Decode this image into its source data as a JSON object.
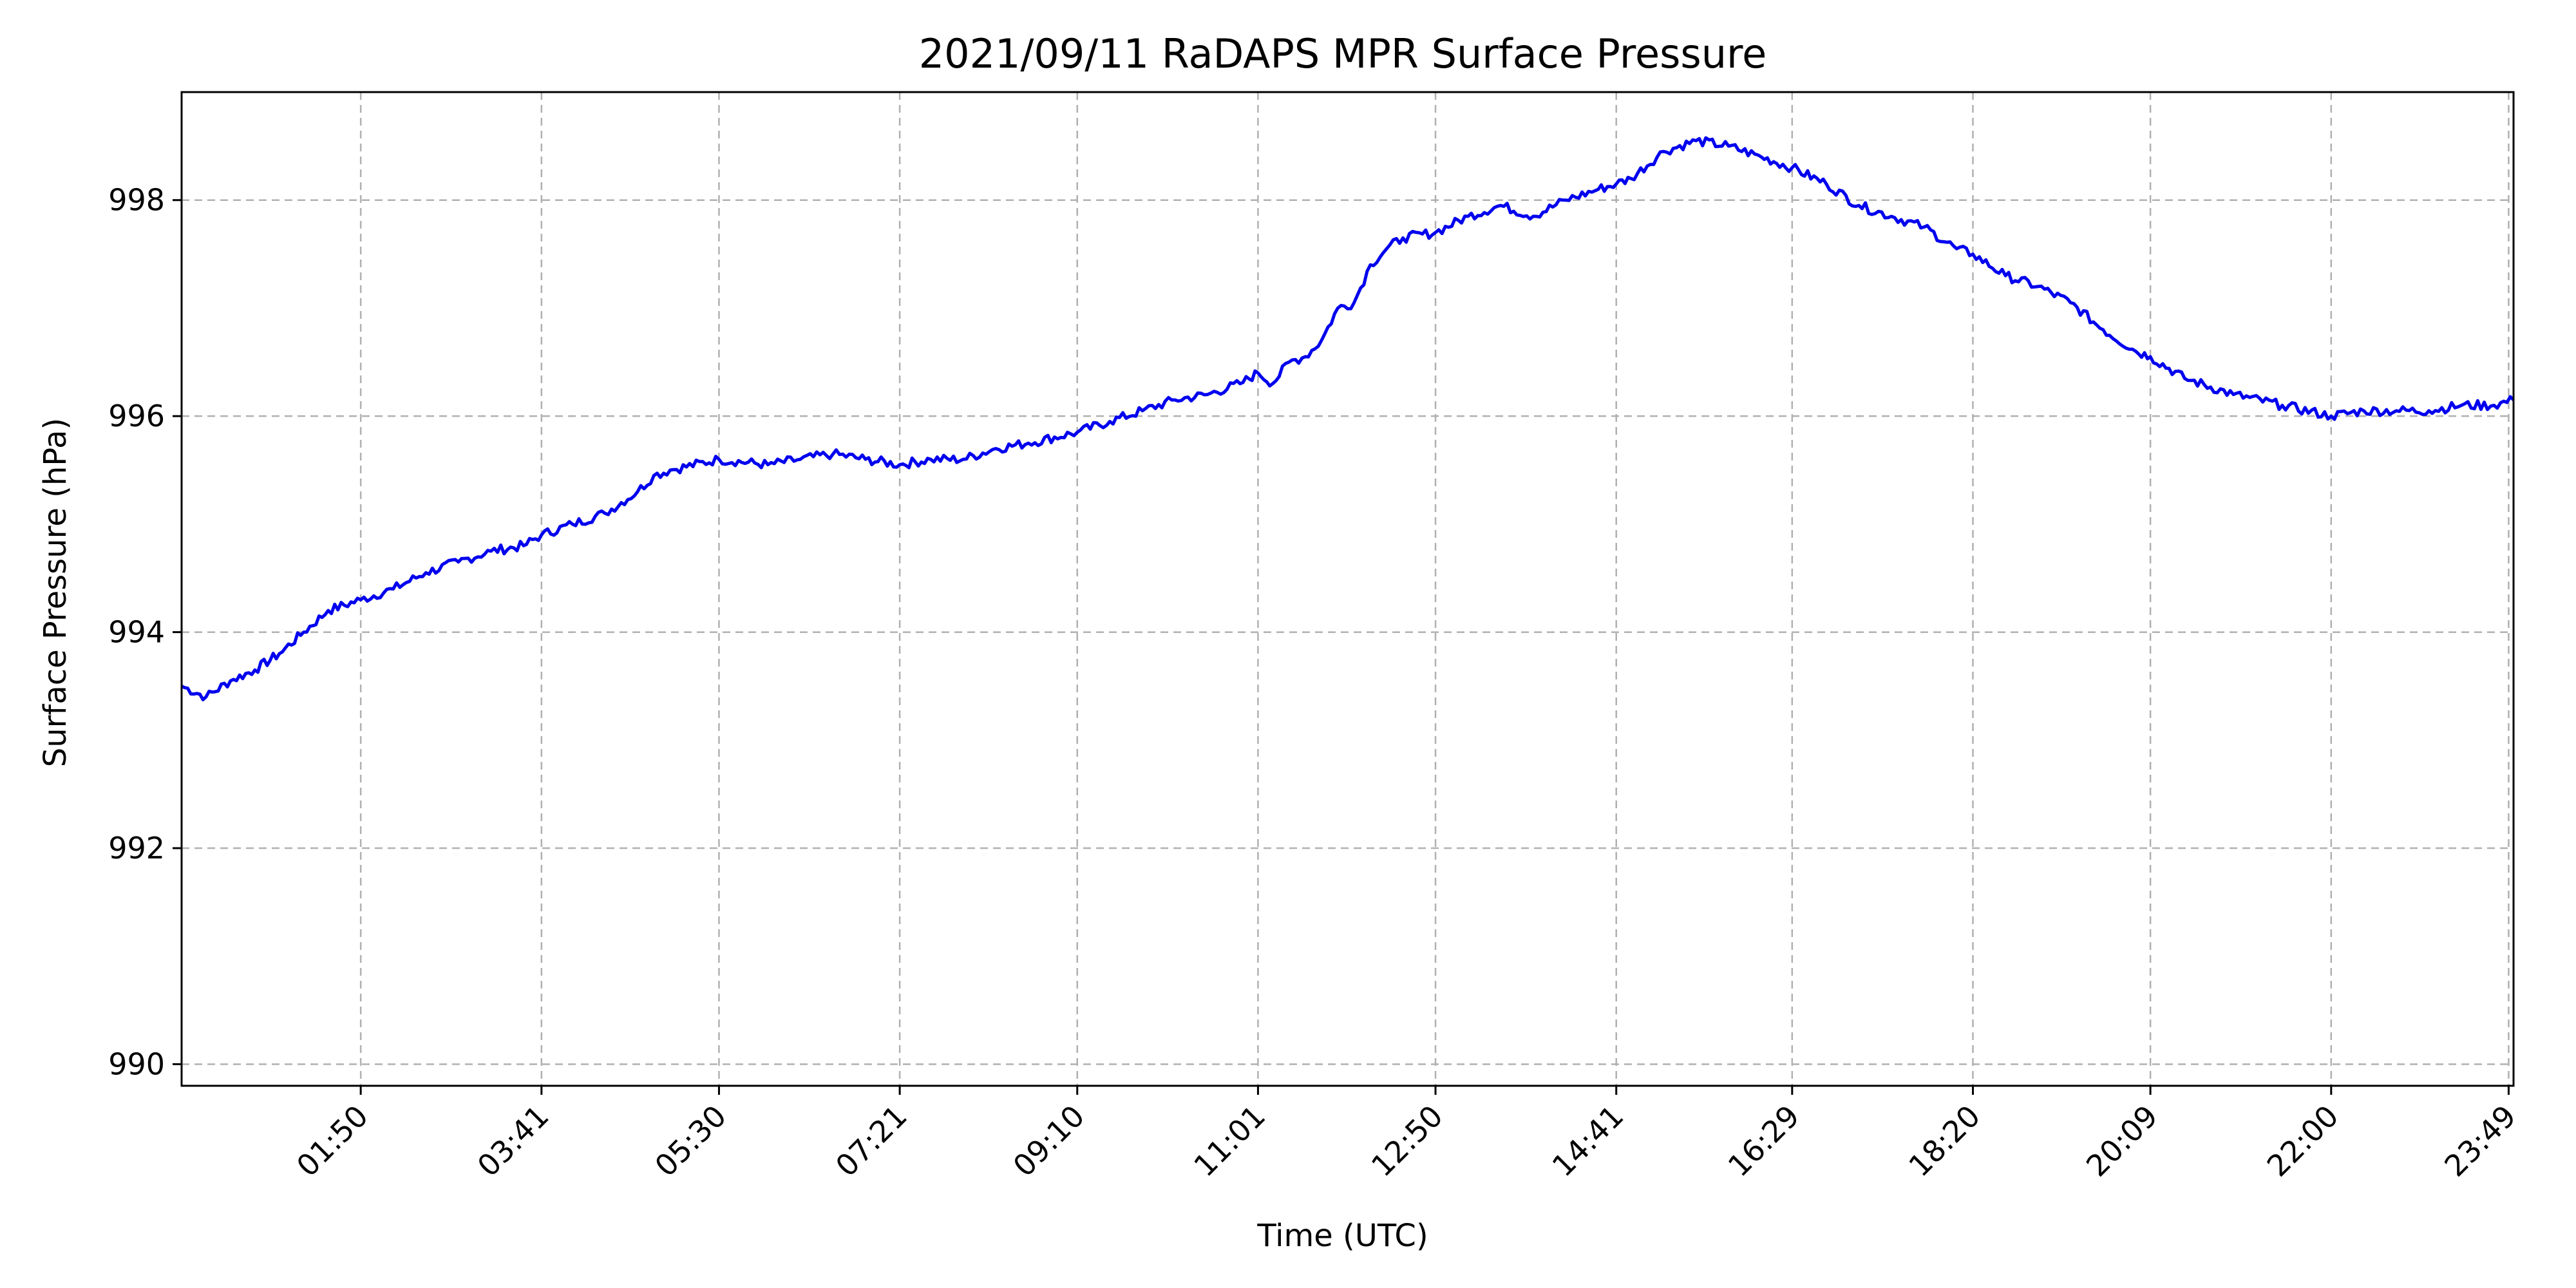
{
  "chart_data": {
    "type": "line",
    "title": "2021/09/11 RaDAPS MPR Surface Pressure",
    "xlabel": "Time (UTC)",
    "ylabel": "Surface Pressure (hPa)",
    "xlim": [
      "00:00",
      "23:52"
    ],
    "ylim": [
      989.8,
      999.0
    ],
    "yticks": [
      990,
      992,
      994,
      996,
      998
    ],
    "xticks": [
      "01:50",
      "03:41",
      "05:30",
      "07:21",
      "09:10",
      "11:01",
      "12:50",
      "14:41",
      "16:29",
      "18:20",
      "20:09",
      "22:00",
      "23:49"
    ],
    "grid": true,
    "grid_style": "dashed",
    "series": [
      {
        "color": "#0000ee",
        "x": [
          "00:00",
          "00:15",
          "00:30",
          "00:45",
          "01:00",
          "01:15",
          "01:30",
          "01:50",
          "02:10",
          "02:30",
          "02:50",
          "03:10",
          "03:30",
          "03:41",
          "04:00",
          "04:20",
          "04:40",
          "04:50",
          "05:00",
          "05:30",
          "06:00",
          "06:20",
          "06:40",
          "07:00",
          "07:21",
          "07:40",
          "08:00",
          "08:20",
          "08:40",
          "09:10",
          "09:30",
          "09:50",
          "10:10",
          "10:30",
          "10:50",
          "11:01",
          "11:10",
          "11:20",
          "11:30",
          "11:40",
          "11:50",
          "12:00",
          "12:10",
          "12:20",
          "12:30",
          "12:50",
          "13:10",
          "13:30",
          "13:50",
          "14:10",
          "14:30",
          "14:41",
          "14:50",
          "15:10",
          "15:30",
          "15:50",
          "16:10",
          "16:29",
          "16:50",
          "17:10",
          "17:30",
          "17:50",
          "18:10",
          "18:20",
          "18:40",
          "19:00",
          "19:20",
          "19:40",
          "20:00",
          "20:09",
          "20:30",
          "21:00",
          "21:30",
          "22:00",
          "22:20",
          "22:40",
          "23:00",
          "23:20",
          "23:40",
          "23:52"
        ],
        "y": [
          993.5,
          993.4,
          993.55,
          993.65,
          993.8,
          994.0,
          994.2,
          994.3,
          994.4,
          994.55,
          994.65,
          994.75,
          994.8,
          994.9,
          995.0,
          995.1,
          995.3,
          995.45,
          995.5,
          995.6,
          995.55,
          995.6,
          995.65,
          995.6,
          995.55,
          995.6,
          995.6,
          995.7,
          995.75,
          995.85,
          995.95,
          996.05,
          996.15,
          996.2,
          996.3,
          996.4,
          996.3,
          996.5,
          996.55,
          996.7,
          997.0,
          997.05,
          997.4,
          997.55,
          997.65,
          997.7,
          997.85,
          997.95,
          997.85,
          998.0,
          998.1,
          998.15,
          998.2,
          998.45,
          998.55,
          998.5,
          998.4,
          998.3,
          998.15,
          997.95,
          997.85,
          997.75,
          997.55,
          997.5,
          997.3,
          997.2,
          997.05,
          996.8,
          996.6,
          996.55,
          996.35,
          996.2,
          996.1,
          996.0,
          996.05,
          996.05,
          996.05,
          996.1,
          996.1,
          996.15
        ]
      }
    ]
  }
}
